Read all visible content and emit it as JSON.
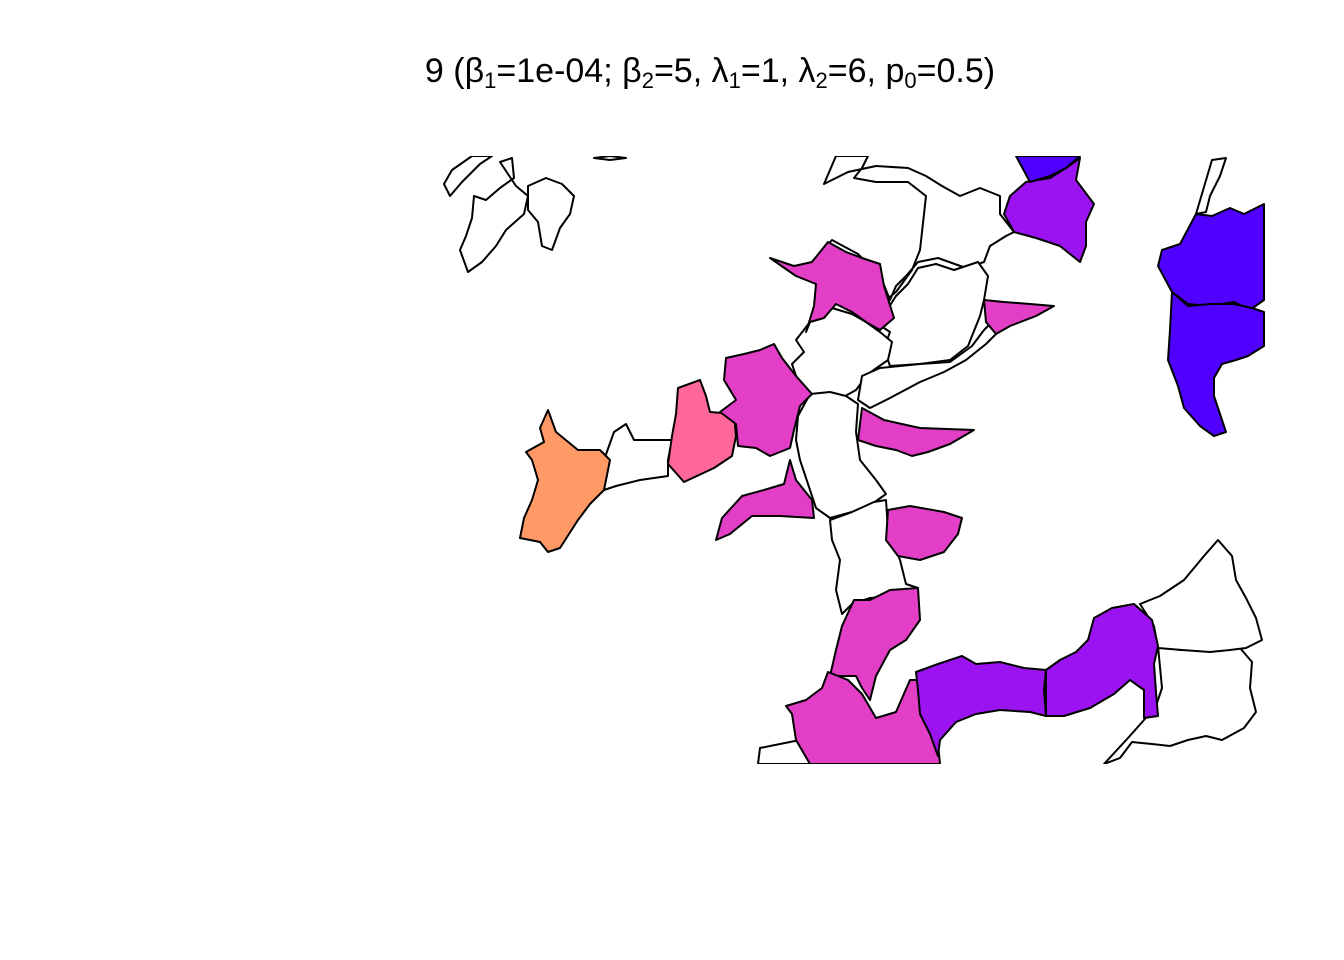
{
  "title": {
    "prefix": "9 (",
    "beta1_symbol": "β",
    "beta1_sub": "1",
    "beta1_value": "=1e-04; ",
    "beta2_symbol": "β",
    "beta2_sub": "2",
    "beta2_value": "=5, ",
    "lambda1_symbol": "λ",
    "lambda1_sub": "1",
    "lambda1_value": "=1, ",
    "lambda2_symbol": "λ",
    "lambda2_sub": "2",
    "lambda2_value": "=6, ",
    "p0_symbol": "p",
    "p0_sub": "0",
    "p0_value": "=0.5)"
  },
  "colors": {
    "none": "#FFFFFF",
    "orange": "#FF9966",
    "pink": "#FF6699",
    "magenta": "#E23EC6",
    "violet": "#9B13F0",
    "blue": "#5000FF"
  }
}
